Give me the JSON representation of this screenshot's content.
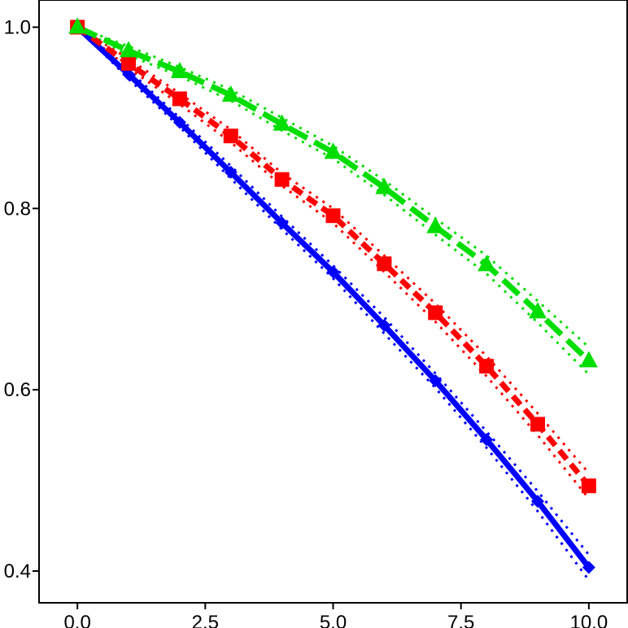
{
  "chart_data": {
    "type": "line",
    "title": "",
    "xlabel": "",
    "ylabel": "",
    "xlim": [
      -0.75,
      10.75
    ],
    "ylim": [
      0.365,
      1.03
    ],
    "x_ticks": [
      0,
      2.5,
      5,
      7.5,
      10
    ],
    "x_tick_labels": [
      "0.0",
      "2.5",
      "5.0",
      "7.5",
      "10.0"
    ],
    "y_ticks": [
      0.4,
      0.6,
      0.8,
      1.0
    ],
    "y_tick_labels": [
      "0.4",
      "0.6",
      "0.8",
      "1.0"
    ],
    "grid": false,
    "legend": "none",
    "x": [
      0,
      1,
      2,
      3,
      4,
      5,
      6,
      7,
      8,
      9,
      10
    ],
    "series": [
      {
        "color": "#0000ff",
        "line_style": "solid",
        "marker": "diamond",
        "values": [
          1.0,
          0.948,
          0.895,
          0.84,
          0.784,
          0.73,
          0.671,
          0.61,
          0.545,
          0.477,
          0.404
        ],
        "lower": [
          1.0,
          0.943,
          0.89,
          0.833,
          0.777,
          0.723,
          0.662,
          0.602,
          0.536,
          0.466,
          0.39
        ],
        "upper": [
          1.0,
          0.953,
          0.9,
          0.847,
          0.791,
          0.737,
          0.68,
          0.618,
          0.554,
          0.488,
          0.418
        ]
      },
      {
        "color": "#ff0000",
        "line_style": "dashed",
        "marker": "square",
        "values": [
          1.0,
          0.96,
          0.921,
          0.88,
          0.832,
          0.792,
          0.739,
          0.685,
          0.626,
          0.562,
          0.494
        ],
        "lower": [
          1.0,
          0.955,
          0.915,
          0.873,
          0.825,
          0.784,
          0.73,
          0.675,
          0.615,
          0.55,
          0.48
        ],
        "upper": [
          1.0,
          0.965,
          0.927,
          0.887,
          0.839,
          0.8,
          0.748,
          0.695,
          0.637,
          0.574,
          0.508
        ]
      },
      {
        "color": "#00dd00",
        "line_style": "longdash",
        "marker": "triangle",
        "values": [
          1.0,
          0.974,
          0.951,
          0.925,
          0.893,
          0.862,
          0.823,
          0.78,
          0.738,
          0.686,
          0.632
        ],
        "lower": [
          1.0,
          0.969,
          0.946,
          0.919,
          0.886,
          0.855,
          0.815,
          0.771,
          0.728,
          0.674,
          0.617
        ],
        "upper": [
          1.0,
          0.979,
          0.956,
          0.931,
          0.9,
          0.869,
          0.831,
          0.789,
          0.748,
          0.698,
          0.647
        ]
      }
    ]
  }
}
